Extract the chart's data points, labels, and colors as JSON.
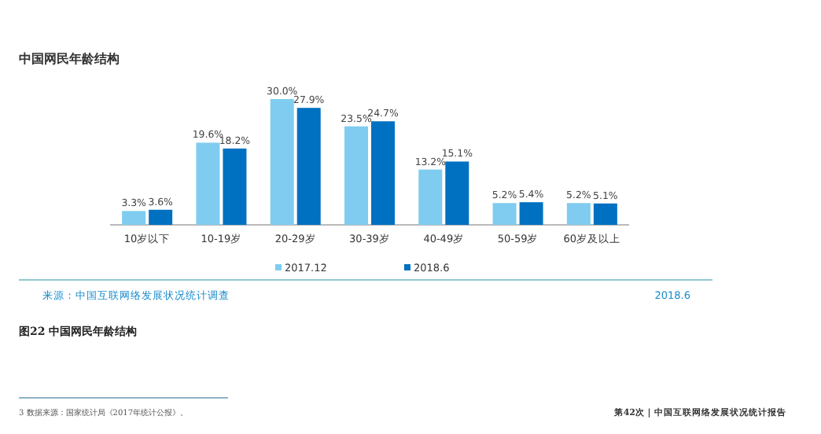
{
  "chart_data": {
    "type": "bar",
    "title": "中国网民年龄结构",
    "categories": [
      "10岁以下",
      "10-19岁",
      "20-29岁",
      "30-39岁",
      "40-49岁",
      "50-59岁",
      "60岁及以上"
    ],
    "series": [
      {
        "name": "2017.12",
        "color": "#7fccf0",
        "values": [
          3.3,
          19.6,
          30.0,
          23.5,
          13.2,
          5.2,
          5.2
        ],
        "value_labels": [
          "3.3%",
          "19.6%",
          "30.0%",
          "23.5%",
          "13.2%",
          "5.2%",
          "5.2%"
        ]
      },
      {
        "name": "2018.6",
        "color": "#0070c0",
        "values": [
          3.6,
          18.2,
          27.9,
          24.7,
          15.1,
          5.4,
          5.1
        ],
        "value_labels": [
          "3.6%",
          "18.2%",
          "27.9%",
          "24.7%",
          "15.1%",
          "5.4%",
          "5.1%"
        ]
      }
    ],
    "legend": "bottom",
    "annotations": [
      "来源：中国互联网络发展状况统计调查",
      "2018.6",
      "图22 中国网民年龄结构",
      "3 数据来源：国家统计局《2017年统计公报》。",
      "第42次｜中国互联网络发展状况统计报告"
    ]
  }
}
